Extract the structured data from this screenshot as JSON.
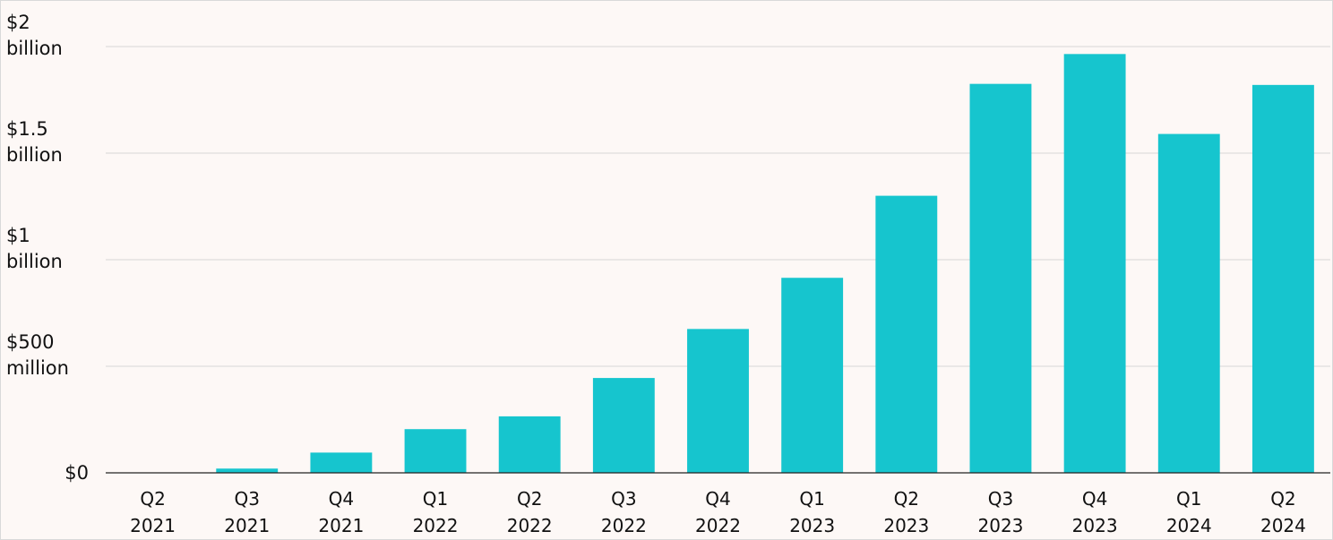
{
  "chart_data": {
    "type": "bar",
    "title": "",
    "xlabel": "",
    "ylabel": "",
    "categories": [
      [
        "Q2",
        "2021"
      ],
      [
        "Q3",
        "2021"
      ],
      [
        "Q4",
        "2021"
      ],
      [
        "Q1",
        "2022"
      ],
      [
        "Q2",
        "2022"
      ],
      [
        "Q3",
        "2022"
      ],
      [
        "Q4",
        "2022"
      ],
      [
        "Q1",
        "2023"
      ],
      [
        "Q2",
        "2023"
      ],
      [
        "Q3",
        "2023"
      ],
      [
        "Q4",
        "2023"
      ],
      [
        "Q1",
        "2024"
      ],
      [
        "Q2",
        "2024"
      ]
    ],
    "values": [
      0,
      20000000,
      95000000,
      205000000,
      265000000,
      445000000,
      675000000,
      915000000,
      1300000000,
      1825000000,
      1965000000,
      1590000000,
      1820000000
    ],
    "ylim": [
      0,
      2000000000
    ],
    "y_ticks": [
      {
        "value": 0,
        "label": [
          "$0"
        ]
      },
      {
        "value": 500000000,
        "label": [
          "$500",
          "million"
        ]
      },
      {
        "value": 1000000000,
        "label": [
          "$1",
          "billion"
        ]
      },
      {
        "value": 1500000000,
        "label": [
          "$1.5",
          "billion"
        ]
      },
      {
        "value": 2000000000,
        "label": [
          "$2",
          "billion"
        ]
      }
    ],
    "grid": true,
    "legend": "none",
    "bar_color": "#16c5ce",
    "grid_color": "#d6d6d6",
    "background": "#fdf8f6"
  }
}
